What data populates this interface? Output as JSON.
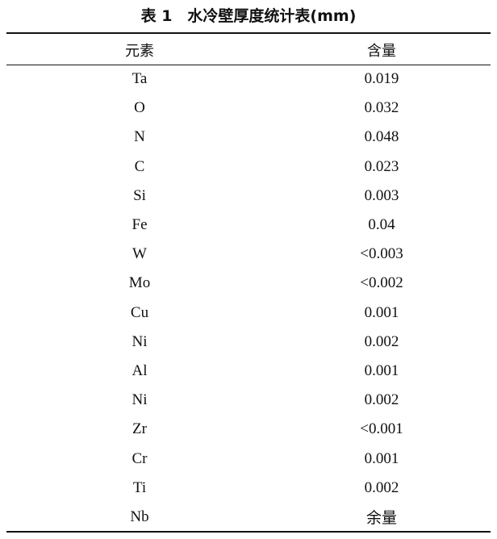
{
  "title": "表 1　水冷壁厚度统计表(mm)",
  "headers": [
    "元素",
    "含量"
  ],
  "rows": [
    [
      "Ta",
      "0.019"
    ],
    [
      "O",
      "0.032"
    ],
    [
      "N",
      "0.048"
    ],
    [
      "C",
      "0.023"
    ],
    [
      "Si",
      "0.003"
    ],
    [
      "Fe",
      "0.04"
    ],
    [
      "W",
      "<0.003"
    ],
    [
      "Mo",
      "<0.002"
    ],
    [
      "Cu",
      "0.001"
    ],
    [
      "Ni",
      "0.002"
    ],
    [
      "Al",
      "0.001"
    ],
    [
      "Ni",
      "0.002"
    ],
    [
      "Zr",
      "<0.001"
    ],
    [
      "Cr",
      "0.001"
    ],
    [
      "Ti",
      "0.002"
    ],
    [
      "Nb",
      "余量"
    ]
  ]
}
